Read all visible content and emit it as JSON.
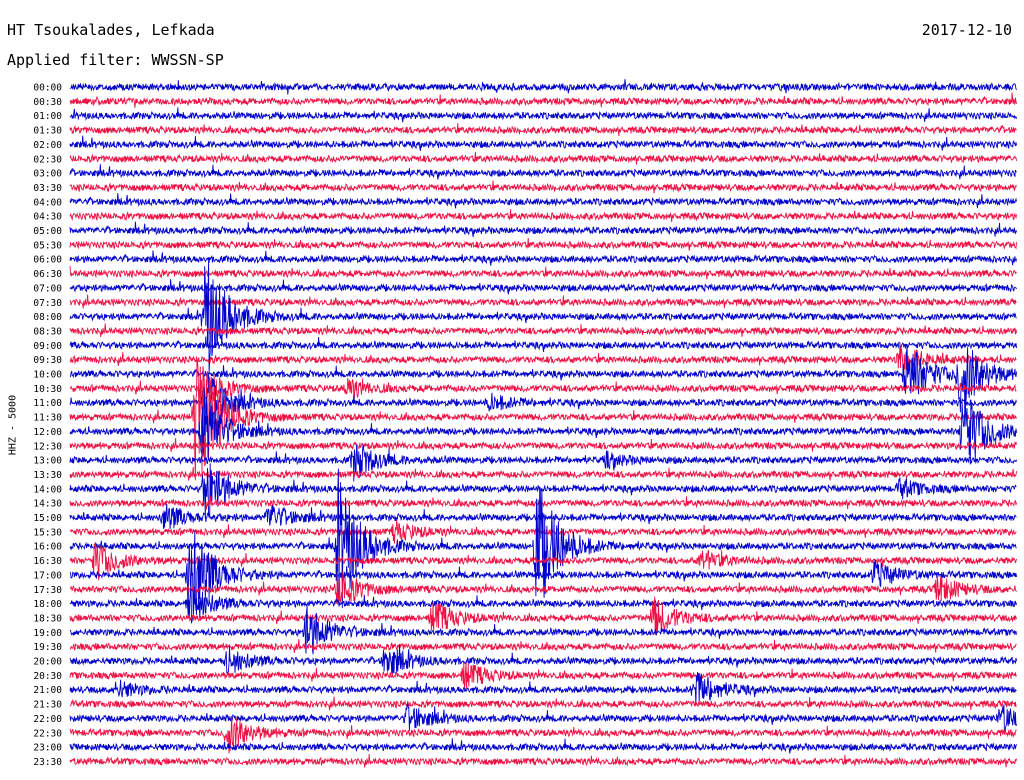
{
  "header": {
    "station": "HT Tsoukalades, Lefkada",
    "date": "2017-12-10",
    "filter": "Applied filter: WWSSN-SP"
  },
  "chart_data": {
    "type": "line",
    "title": "HT Tsoukalades, Lefkada",
    "date": "2017-12-10",
    "filter": "WWSSN-SP",
    "ylabel": "HHZ - 5000",
    "colors": [
      "#0000cc",
      "#ee1144"
    ],
    "rows": [
      "00:00",
      "00:30",
      "01:00",
      "01:30",
      "02:00",
      "02:30",
      "03:00",
      "03:30",
      "04:00",
      "04:30",
      "05:00",
      "05:30",
      "06:00",
      "06:30",
      "07:00",
      "07:30",
      "08:00",
      "08:30",
      "09:00",
      "09:30",
      "10:00",
      "10:30",
      "11:00",
      "11:30",
      "12:00",
      "12:30",
      "13:00",
      "13:30",
      "14:00",
      "14:30",
      "15:00",
      "15:30",
      "16:00",
      "16:30",
      "17:00",
      "17:30",
      "18:00",
      "18:30",
      "19:00",
      "19:30",
      "20:00",
      "20:30",
      "21:00",
      "21:30",
      "22:00",
      "22:30",
      "23:00",
      "23:30"
    ],
    "events": [
      {
        "row": "08:00",
        "minute": 4.3,
        "amplitude": 10
      },
      {
        "row": "09:30",
        "minute": 26.3,
        "amplitude": 2.5
      },
      {
        "row": "10:00",
        "minute": 26.5,
        "amplitude": 5
      },
      {
        "row": "10:00",
        "minute": 28.2,
        "amplitude": 6
      },
      {
        "row": "10:30",
        "minute": 4.2,
        "amplitude": 3
      },
      {
        "row": "10:30",
        "minute": 8.8,
        "amplitude": 1.5
      },
      {
        "row": "11:00",
        "minute": 4.3,
        "amplitude": 5
      },
      {
        "row": "11:00",
        "minute": 13.3,
        "amplitude": 1.2
      },
      {
        "row": "11:30",
        "minute": 4.0,
        "amplitude": 12
      },
      {
        "row": "12:00",
        "minute": 4.2,
        "amplitude": 6
      },
      {
        "row": "12:00",
        "minute": 28.3,
        "amplitude": 7
      },
      {
        "row": "13:00",
        "minute": 9.0,
        "amplitude": 3
      },
      {
        "row": "13:00",
        "minute": 17.0,
        "amplitude": 1
      },
      {
        "row": "14:00",
        "minute": 26.3,
        "amplitude": 1.4
      },
      {
        "row": "14:00",
        "minute": 4.3,
        "amplitude": 5
      },
      {
        "row": "14:00",
        "minute": 56.3,
        "amplitude": 1.6
      },
      {
        "row": "15:00",
        "minute": 3.0,
        "amplitude": 2
      },
      {
        "row": "15:00",
        "minute": 6.3,
        "amplitude": 2
      },
      {
        "row": "15:30",
        "minute": 10.3,
        "amplitude": 1.5
      },
      {
        "row": "15:30",
        "minute": 44.3,
        "amplitude": 1.2
      },
      {
        "row": "15:30",
        "minute": 50.0,
        "amplitude": 1.2
      },
      {
        "row": "15:30",
        "minute": 35.3,
        "amplitude": 4
      },
      {
        "row": "15:30",
        "minute": 57.3,
        "amplitude": 2
      },
      {
        "row": "16:00",
        "minute": 8.5,
        "amplitude": 11
      },
      {
        "row": "16:00",
        "minute": 14.8,
        "amplitude": 11
      },
      {
        "row": "16:30",
        "minute": 0.8,
        "amplitude": 3
      },
      {
        "row": "16:30",
        "minute": 20.0,
        "amplitude": 1.5
      },
      {
        "row": "16:30",
        "minute": 38.3,
        "amplitude": 3
      },
      {
        "row": "16:30",
        "minute": 57.8,
        "amplitude": 2.5
      },
      {
        "row": "17:00",
        "minute": 3.8,
        "amplitude": 9
      },
      {
        "row": "17:00",
        "minute": 49.3,
        "amplitude": 3
      },
      {
        "row": "17:00",
        "minute": 51.3,
        "amplitude": 2.5
      },
      {
        "row": "17:00",
        "minute": 25.5,
        "amplitude": 2
      },
      {
        "row": "17:30",
        "minute": 27.5,
        "amplitude": 2
      },
      {
        "row": "17:30",
        "minute": 50.0,
        "amplitude": 4
      },
      {
        "row": "17:30",
        "minute": 8.5,
        "amplitude": 3
      },
      {
        "row": "18:00",
        "minute": 3.8,
        "amplitude": 3
      },
      {
        "row": "18:30",
        "minute": 11.5,
        "amplitude": 2.5
      },
      {
        "row": "18:30",
        "minute": 18.5,
        "amplitude": 3
      },
      {
        "row": "18:30",
        "minute": 49.5,
        "amplitude": 2
      },
      {
        "row": "19:00",
        "minute": 7.5,
        "amplitude": 4
      },
      {
        "row": "19:00",
        "minute": 35.0,
        "amplitude": 2.5
      },
      {
        "row": "19:00",
        "minute": 42.3,
        "amplitude": 2.5
      },
      {
        "row": "20:00",
        "minute": 5.0,
        "amplitude": 2
      },
      {
        "row": "20:00",
        "minute": 10.0,
        "amplitude": 2.5
      },
      {
        "row": "20:30",
        "minute": 12.5,
        "amplitude": 2
      },
      {
        "row": "21:00",
        "minute": 1.5,
        "amplitude": 1.3
      },
      {
        "row": "21:00",
        "minute": 19.8,
        "amplitude": 3
      },
      {
        "row": "21:00",
        "minute": 51.3,
        "amplitude": 1.6
      },
      {
        "row": "21:30",
        "minute": 54.0,
        "amplitude": 2.5
      },
      {
        "row": "22:00",
        "minute": 10.7,
        "amplitude": 2
      },
      {
        "row": "22:00",
        "minute": 29.5,
        "amplitude": 2
      },
      {
        "row": "22:30",
        "minute": 5.0,
        "amplitude": 3
      },
      {
        "row": "22:30",
        "minute": 54.0,
        "amplitude": 5
      }
    ]
  }
}
